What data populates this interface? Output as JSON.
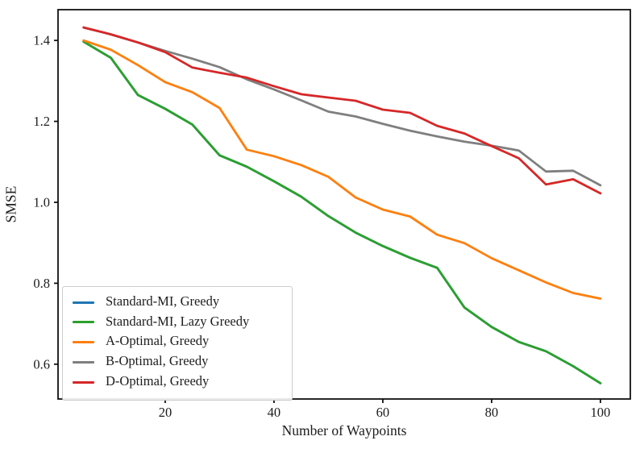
{
  "chart_data": {
    "type": "line",
    "title": "",
    "xlabel": "Number of Waypoints",
    "ylabel": "SMSE",
    "x": [
      5,
      10,
      15,
      20,
      25,
      30,
      35,
      40,
      45,
      50,
      55,
      60,
      65,
      70,
      75,
      80,
      85,
      90,
      95,
      100
    ],
    "series": [
      {
        "name": "Standard-MI, Greedy",
        "color": "#1f77b4",
        "values": [
          1.397,
          1.357,
          1.265,
          1.231,
          1.192,
          1.116,
          1.088,
          1.052,
          1.014,
          0.966,
          0.925,
          0.892,
          0.863,
          0.838,
          0.74,
          0.692,
          0.655,
          0.632,
          0.595,
          0.553
        ],
        "overlap_note": "hidden beneath Standard-MI, Lazy Greedy"
      },
      {
        "name": "Standard-MI, Lazy Greedy",
        "color": "#2ca02c",
        "values": [
          1.397,
          1.357,
          1.265,
          1.231,
          1.192,
          1.116,
          1.088,
          1.052,
          1.014,
          0.966,
          0.925,
          0.892,
          0.863,
          0.838,
          0.74,
          0.692,
          0.655,
          0.632,
          0.595,
          0.553
        ]
      },
      {
        "name": "A-Optimal, Greedy",
        "color": "#ff7f0e",
        "values": [
          1.4,
          1.377,
          1.339,
          1.297,
          1.272,
          1.233,
          1.13,
          1.114,
          1.092,
          1.063,
          1.012,
          0.982,
          0.965,
          0.92,
          0.899,
          0.862,
          0.832,
          0.802,
          0.776,
          0.762
        ]
      },
      {
        "name": "B-Optimal, Greedy",
        "color": "#7f7f7f",
        "values": [
          1.432,
          1.415,
          1.395,
          1.374,
          1.355,
          1.334,
          1.304,
          1.279,
          1.252,
          1.224,
          1.212,
          1.194,
          1.177,
          1.163,
          1.15,
          1.14,
          1.128,
          1.076,
          1.078,
          1.042
        ]
      },
      {
        "name": "D-Optimal, Greedy",
        "color": "#d62728",
        "values": [
          1.432,
          1.415,
          1.395,
          1.371,
          1.333,
          1.32,
          1.308,
          1.287,
          1.267,
          1.259,
          1.251,
          1.229,
          1.221,
          1.189,
          1.17,
          1.139,
          1.109,
          1.044,
          1.057,
          1.022
        ]
      }
    ],
    "x_tick_labels": [
      "20",
      "40",
      "60",
      "80",
      "100"
    ],
    "x_tick_values": [
      20,
      40,
      60,
      80,
      100
    ],
    "y_tick_labels": [
      "0.6",
      "0.8",
      "1.0",
      "1.2",
      "1.4"
    ],
    "y_tick_values": [
      0.6,
      0.8,
      1.0,
      1.2,
      1.4
    ],
    "xlim": [
      0.3,
      105.5
    ],
    "ylim": [
      0.514,
      1.476
    ],
    "grid": false,
    "legend_position": "lower left",
    "frame_color": "#111111"
  }
}
